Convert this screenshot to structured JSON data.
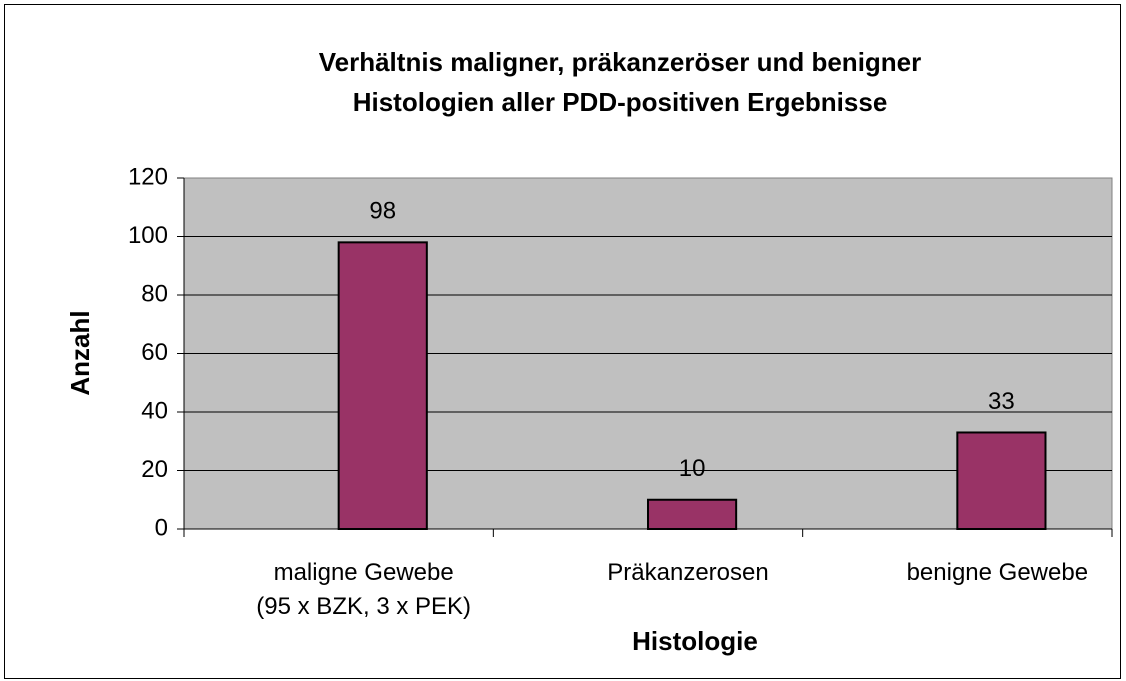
{
  "chart_data": {
    "type": "bar",
    "title": "Verhältnis maligner, präkanzeröser und benigner\nHistologien aller PDD-positiven Ergebnisse",
    "x_label": "Histologie",
    "y_label": "Anzahl",
    "categories": [
      "maligne Gewebe\n(95 x BZK, 3 x PEK)",
      "Präkanzerosen",
      "benigne Gewebe"
    ],
    "values": [
      98,
      10,
      33
    ],
    "color": "#993366",
    "ylim": [
      0,
      120
    ],
    "yticks": [
      0,
      20,
      40,
      60,
      80,
      100,
      120
    ],
    "grid": true
  }
}
